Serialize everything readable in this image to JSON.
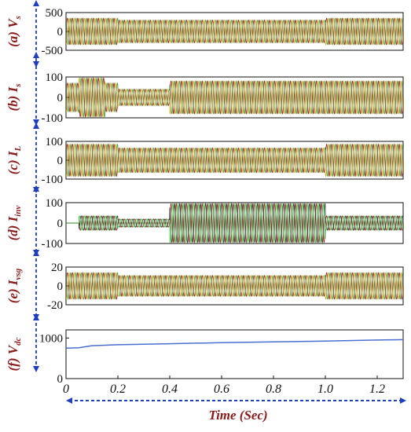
{
  "chart_data": [
    {
      "type": "line",
      "panel_tag": "(a)",
      "ylabel": "V_s",
      "ylabel_main": "V",
      "ylabel_sub": "s",
      "ylim": [
        -500,
        500
      ],
      "yticks": [
        "500",
        "0",
        "-500"
      ],
      "series": [
        {
          "color": "#8b0000"
        },
        {
          "color": "#2e8b22"
        },
        {
          "color": "#c8a000"
        }
      ],
      "segments": [
        {
          "t_start": 0.0,
          "t_end": 0.2,
          "amplitude": 350
        },
        {
          "t_start": 0.2,
          "t_end": 1.0,
          "amplitude": 300
        },
        {
          "t_start": 1.0,
          "t_end": 1.3,
          "amplitude": 350
        }
      ]
    },
    {
      "type": "line",
      "panel_tag": "(b)",
      "ylabel": "I_s",
      "ylabel_main": "I",
      "ylabel_sub": "s",
      "ylim": [
        -100,
        100
      ],
      "yticks": [
        "100",
        "0",
        "-100"
      ],
      "series": [
        {
          "color": "#8b0000"
        },
        {
          "color": "#2e8b22"
        },
        {
          "color": "#c8a000"
        }
      ],
      "segments": [
        {
          "t_start": 0.0,
          "t_end": 0.05,
          "amplitude": 70
        },
        {
          "t_start": 0.05,
          "t_end": 0.15,
          "amplitude": 95
        },
        {
          "t_start": 0.15,
          "t_end": 0.2,
          "amplitude": 70
        },
        {
          "t_start": 0.2,
          "t_end": 0.4,
          "amplitude": 40
        },
        {
          "t_start": 0.4,
          "t_end": 1.3,
          "amplitude": 80
        }
      ]
    },
    {
      "type": "line",
      "panel_tag": "(c)",
      "ylabel": "I_L",
      "ylabel_main": "I",
      "ylabel_sub": "L",
      "ylim": [
        -100,
        100
      ],
      "yticks": [
        "100",
        "0",
        "-100"
      ],
      "series": [
        {
          "color": "#8b0000"
        },
        {
          "color": "#2e8b22"
        },
        {
          "color": "#c8a000"
        }
      ],
      "segments": [
        {
          "t_start": 0.0,
          "t_end": 0.2,
          "amplitude": 85
        },
        {
          "t_start": 0.2,
          "t_end": 1.0,
          "amplitude": 65
        },
        {
          "t_start": 1.0,
          "t_end": 1.3,
          "amplitude": 85
        }
      ]
    },
    {
      "type": "line",
      "panel_tag": "(d)",
      "ylabel": "I_inv",
      "ylabel_main": "I",
      "ylabel_sub": "inv",
      "ylim": [
        -100,
        100
      ],
      "yticks": [
        "100",
        "0",
        "-100"
      ],
      "series": [
        {
          "color": "#8b0000"
        },
        {
          "color": "#111111"
        },
        {
          "color": "#22c022"
        }
      ],
      "segments": [
        {
          "t_start": 0.0,
          "t_end": 0.05,
          "amplitude": 0
        },
        {
          "t_start": 0.05,
          "t_end": 0.2,
          "amplitude": 35
        },
        {
          "t_start": 0.2,
          "t_end": 0.4,
          "amplitude": 20
        },
        {
          "t_start": 0.4,
          "t_end": 1.0,
          "amplitude": 95
        },
        {
          "t_start": 1.0,
          "t_end": 1.3,
          "amplitude": 35
        }
      ]
    },
    {
      "type": "line",
      "panel_tag": "(e)",
      "ylabel": "I_vsg",
      "ylabel_main": "I",
      "ylabel_sub": "vsg",
      "ylim": [
        -20,
        20
      ],
      "yticks": [
        "20",
        "0",
        "-20"
      ],
      "series": [
        {
          "color": "#8b0000"
        },
        {
          "color": "#2e8b22"
        },
        {
          "color": "#c8a000"
        }
      ],
      "segments": [
        {
          "t_start": 0.0,
          "t_end": 0.2,
          "amplitude": 14
        },
        {
          "t_start": 0.2,
          "t_end": 1.0,
          "amplitude": 11
        },
        {
          "t_start": 1.0,
          "t_end": 1.3,
          "amplitude": 14
        }
      ]
    },
    {
      "type": "line",
      "panel_tag": "(f)",
      "ylabel": "V_dc",
      "ylabel_main": "V",
      "ylabel_sub": "dc",
      "ylim": [
        0,
        1200
      ],
      "yticks": [
        "1000",
        "0"
      ],
      "xlim": [
        0,
        1.3
      ],
      "xticks": [
        "0",
        "0.2",
        "0.4",
        "0.6",
        "0.8",
        "1.0",
        "1.2"
      ],
      "xlabel": "Time (Sec)",
      "series": [
        {
          "color": "#4a6fd0",
          "x": [
            0.0,
            0.05,
            0.1,
            0.2,
            0.4,
            0.6,
            0.8,
            1.0,
            1.2,
            1.3
          ],
          "y": [
            750,
            760,
            810,
            835,
            860,
            885,
            905,
            925,
            950,
            960
          ]
        }
      ]
    }
  ]
}
